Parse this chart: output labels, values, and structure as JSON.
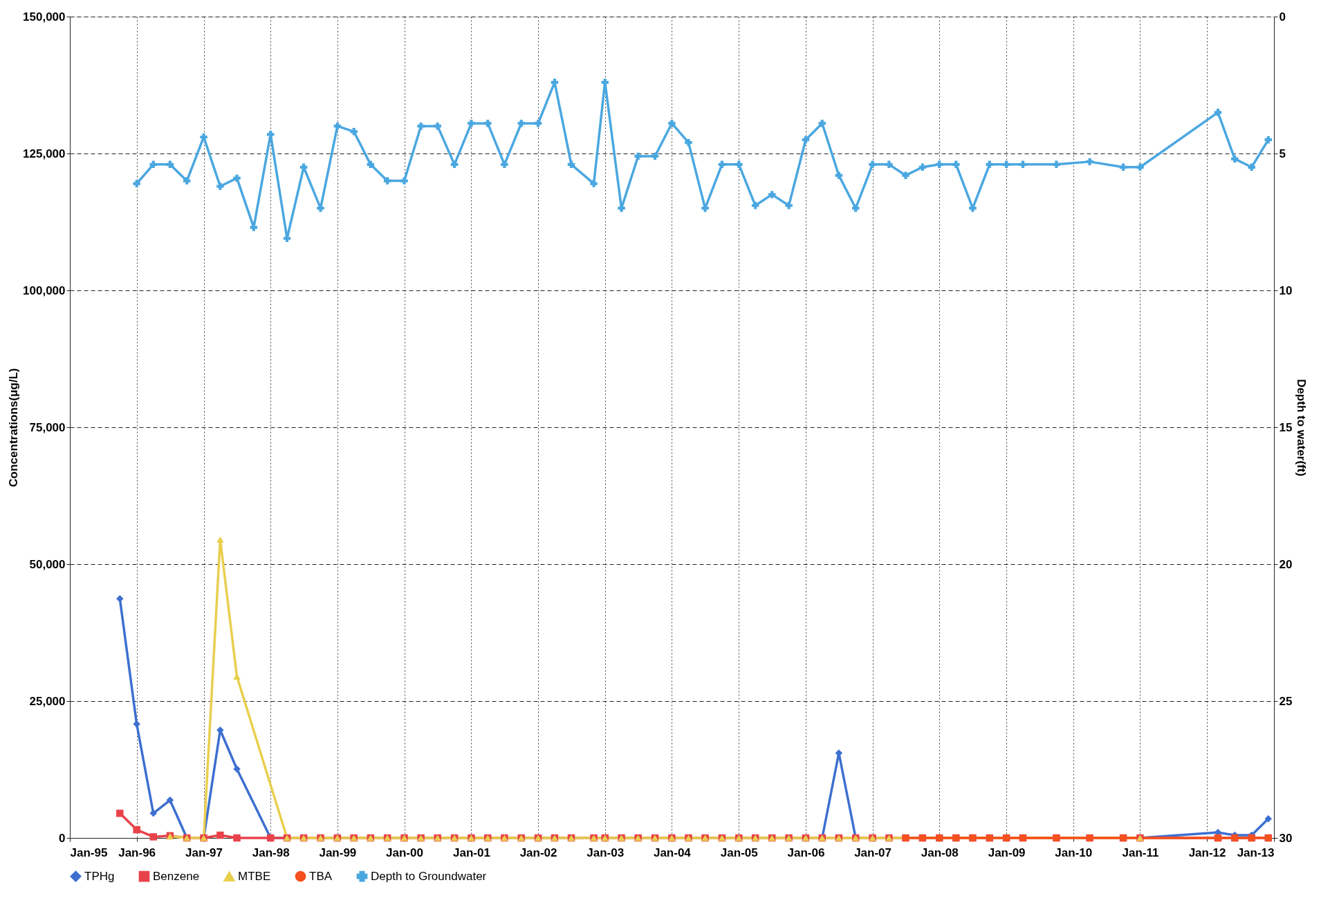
{
  "chart_data": {
    "type": "line",
    "xlabel": null,
    "ylabel": "Concentrations(μg/L)",
    "y2label": "Depth to water(ft)",
    "xlim": [
      "1995-01",
      "2013-01"
    ],
    "xticks": [
      {
        "value": "1995-01",
        "label": "Jan-95"
      },
      {
        "value": "1996-01",
        "label": "Jan-96"
      },
      {
        "value": "1997-01",
        "label": "Jan-97"
      },
      {
        "value": "1998-01",
        "label": "Jan-98"
      },
      {
        "value": "1999-01",
        "label": "Jan-99"
      },
      {
        "value": "2000-01",
        "label": "Jan-00"
      },
      {
        "value": "2001-01",
        "label": "Jan-01"
      },
      {
        "value": "2002-01",
        "label": "Jan-02"
      },
      {
        "value": "2003-01",
        "label": "Jan-03"
      },
      {
        "value": "2004-01",
        "label": "Jan-04"
      },
      {
        "value": "2005-01",
        "label": "Jan-05"
      },
      {
        "value": "2006-01",
        "label": "Jan-06"
      },
      {
        "value": "2007-01",
        "label": "Jan-07"
      },
      {
        "value": "2008-01",
        "label": "Jan-08"
      },
      {
        "value": "2009-01",
        "label": "Jan-09"
      },
      {
        "value": "2010-01",
        "label": "Jan-10"
      },
      {
        "value": "2011-01",
        "label": "Jan-11"
      },
      {
        "value": "2012-01",
        "label": "Jan-12"
      },
      {
        "value": "2013-01",
        "label": "Jan-13"
      }
    ],
    "ylim": [
      0,
      150000
    ],
    "yticks": [
      {
        "value": 0,
        "label": "0"
      },
      {
        "value": 25000,
        "label": "25,000"
      },
      {
        "value": 50000,
        "label": "50,000"
      },
      {
        "value": 75000,
        "label": "75,000"
      },
      {
        "value": 100000,
        "label": "100,000"
      },
      {
        "value": 125000,
        "label": "125,000"
      },
      {
        "value": 150000,
        "label": "150,000"
      }
    ],
    "y2lim": [
      30,
      0
    ],
    "y2ticks": [
      0,
      5,
      10,
      15,
      20,
      25,
      30
    ],
    "grid": true,
    "legend": "bottom",
    "series": [
      {
        "name": "TPHg",
        "color": "#3d6fd0",
        "marker": "diamond",
        "x": [
          "1995-10",
          "1996-01",
          "1996-04",
          "1996-07",
          "1996-10",
          "1997-01",
          "1997-04",
          "1997-07",
          "1998-01",
          "2006-04",
          "2006-07",
          "2006-10",
          "2011-01",
          "2012-03",
          "2012-06",
          "2012-09",
          "2012-12"
        ],
        "values": [
          43700,
          20800,
          4500,
          6900,
          0,
          0,
          19700,
          12600,
          0,
          0,
          15500,
          0,
          0,
          1000,
          500,
          500,
          3500
        ]
      },
      {
        "name": "Benzene",
        "color": "#e8434a",
        "marker": "square",
        "x": [
          "1995-10",
          "1996-01",
          "1996-04",
          "1996-07",
          "1996-10",
          "1997-01",
          "1997-04",
          "1997-07",
          "1998-01",
          "1998-04",
          "1998-07",
          "1998-10",
          "1999-01",
          "1999-04",
          "1999-07",
          "1999-10",
          "2000-01",
          "2000-04",
          "2000-07",
          "2000-10",
          "2001-01",
          "2001-04",
          "2001-07",
          "2001-10",
          "2002-01",
          "2002-04",
          "2002-07",
          "2002-11",
          "2003-01",
          "2003-04",
          "2003-07",
          "2003-10",
          "2004-01",
          "2004-04",
          "2004-07",
          "2004-10",
          "2005-01",
          "2005-04",
          "2005-07",
          "2005-10",
          "2006-01",
          "2006-04",
          "2006-07",
          "2006-10",
          "2007-01",
          "2007-04",
          "2007-07",
          "2007-10",
          "2008-01",
          "2008-04",
          "2008-07",
          "2008-10",
          "2009-01",
          "2009-04",
          "2009-10",
          "2010-04",
          "2010-10",
          "2011-01",
          "2012-03",
          "2012-06",
          "2012-09",
          "2012-12"
        ],
        "values": [
          4500,
          1500,
          200,
          400,
          0,
          0,
          500,
          0,
          0,
          0,
          0,
          0,
          0,
          0,
          0,
          0,
          0,
          0,
          0,
          0,
          0,
          0,
          0,
          0,
          0,
          0,
          0,
          0,
          0,
          0,
          0,
          0,
          0,
          0,
          0,
          0,
          0,
          0,
          0,
          0,
          0,
          0,
          0,
          0,
          0,
          0,
          0,
          0,
          0,
          0,
          0,
          0,
          0,
          0,
          0,
          0,
          0,
          0,
          0,
          0,
          0,
          0
        ]
      },
      {
        "name": "MTBE",
        "color": "#e9cf4e",
        "marker": "triangle",
        "x": [
          "1996-07",
          "1996-10",
          "1997-01",
          "1997-04",
          "1997-07",
          "1998-04",
          "1998-07",
          "1998-10",
          "1999-01",
          "1999-04",
          "1999-07",
          "1999-10",
          "2000-01",
          "2000-04",
          "2000-07",
          "2000-10",
          "2001-01",
          "2001-04",
          "2001-07",
          "2001-10",
          "2002-01",
          "2002-04",
          "2002-07",
          "2002-11",
          "2003-01",
          "2003-04",
          "2003-07",
          "2003-10",
          "2004-01",
          "2004-04",
          "2004-07",
          "2004-10",
          "2005-01",
          "2005-04",
          "2005-07",
          "2005-10",
          "2006-01",
          "2006-04",
          "2006-07",
          "2006-10",
          "2007-01",
          "2007-04",
          "2011-01"
        ],
        "values": [
          300,
          0,
          0,
          54500,
          29500,
          0,
          0,
          0,
          0,
          0,
          0,
          0,
          0,
          0,
          0,
          0,
          0,
          0,
          0,
          0,
          0,
          0,
          0,
          0,
          0,
          0,
          0,
          0,
          0,
          0,
          0,
          0,
          0,
          0,
          0,
          0,
          0,
          0,
          0,
          0,
          0,
          0,
          0
        ]
      },
      {
        "name": "TBA",
        "color": "#f4511e",
        "marker": "circle",
        "x": [
          "2007-07",
          "2007-10",
          "2008-01",
          "2008-04",
          "2008-07",
          "2008-10",
          "2009-01",
          "2009-04",
          "2009-10",
          "2010-04",
          "2010-10",
          "2012-03",
          "2012-06",
          "2012-09",
          "2012-12"
        ],
        "values": [
          0,
          0,
          0,
          0,
          0,
          0,
          0,
          0,
          0,
          0,
          0,
          0,
          0,
          0,
          0
        ]
      },
      {
        "name": "Depth to Groundwater",
        "color": "#4aa7e0",
        "marker": "cross",
        "axis": "y2",
        "x": [
          "1996-01",
          "1996-04",
          "1996-07",
          "1996-10",
          "1997-01",
          "1997-04",
          "1997-07",
          "1997-10",
          "1998-01",
          "1998-04",
          "1998-07",
          "1998-10",
          "1999-01",
          "1999-04",
          "1999-07",
          "1999-10",
          "2000-01",
          "2000-04",
          "2000-07",
          "2000-10",
          "2001-01",
          "2001-04",
          "2001-07",
          "2001-10",
          "2002-01",
          "2002-04",
          "2002-07",
          "2002-11",
          "2003-01",
          "2003-04",
          "2003-07",
          "2003-10",
          "2004-01",
          "2004-04",
          "2004-07",
          "2004-10",
          "2005-01",
          "2005-04",
          "2005-07",
          "2005-10",
          "2006-01",
          "2006-04",
          "2006-07",
          "2006-10",
          "2007-01",
          "2007-04",
          "2007-07",
          "2007-10",
          "2008-01",
          "2008-04",
          "2008-07",
          "2008-10",
          "2009-01",
          "2009-04",
          "2009-10",
          "2010-04",
          "2010-10",
          "2011-01",
          "2012-03",
          "2012-06",
          "2012-09",
          "2012-12"
        ],
        "values": [
          6.1,
          5.4,
          5.4,
          6.0,
          4.4,
          6.2,
          5.9,
          7.7,
          4.3,
          8.1,
          5.5,
          7.0,
          4.0,
          4.2,
          5.4,
          6.0,
          6.0,
          4.0,
          4.0,
          5.4,
          3.9,
          3.9,
          5.4,
          3.9,
          3.9,
          2.4,
          5.4,
          6.1,
          2.4,
          7.0,
          5.1,
          5.1,
          3.9,
          4.6,
          7.0,
          5.4,
          5.4,
          6.9,
          6.5,
          6.9,
          4.5,
          3.9,
          5.8,
          7.0,
          5.4,
          5.4,
          5.8,
          5.5,
          5.4,
          5.4,
          7.0,
          5.4,
          5.4,
          5.4,
          5.4,
          5.3,
          5.5,
          5.5,
          3.5,
          5.2,
          5.5,
          4.5
        ]
      }
    ]
  }
}
